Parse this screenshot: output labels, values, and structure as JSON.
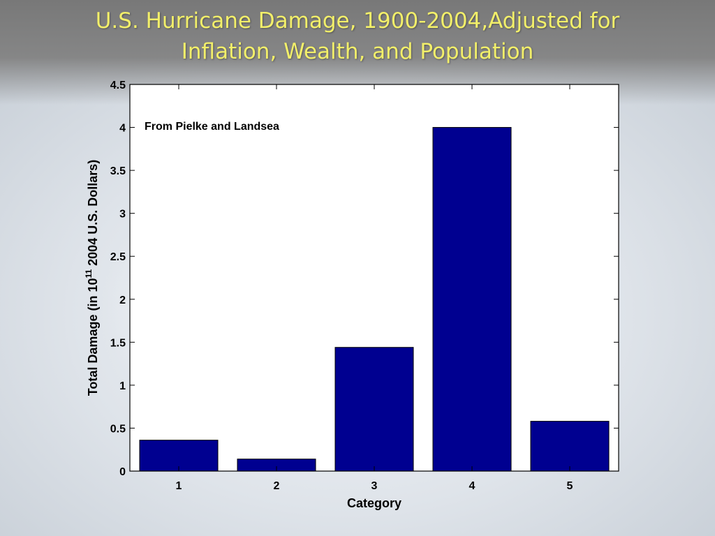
{
  "slide": {
    "title_line1": "U.S. Hurricane Damage, 1900-2004,Adjusted for",
    "title_line2": "Inflation, Wealth, and Population",
    "title_color": "#f2ef6a"
  },
  "chart_data": {
    "type": "bar",
    "title": "",
    "xlabel": "Category",
    "ylabel_prefix": "Total Damage (in 10",
    "ylabel_exponent": "11",
    "ylabel_suffix": " 2004 U.S. Dollars)",
    "annotation": "From Pielke and Landsea",
    "categories": [
      "1",
      "2",
      "3",
      "4",
      "5"
    ],
    "values": [
      0.36,
      0.14,
      1.44,
      4.0,
      0.58
    ],
    "ylim": [
      0,
      4.5
    ],
    "yticks": [
      "0",
      "0.5",
      "1",
      "1.5",
      "2",
      "2.5",
      "3",
      "3.5",
      "4",
      "4.5"
    ],
    "bar_color": "#000090",
    "grid": false,
    "legend": "none"
  }
}
